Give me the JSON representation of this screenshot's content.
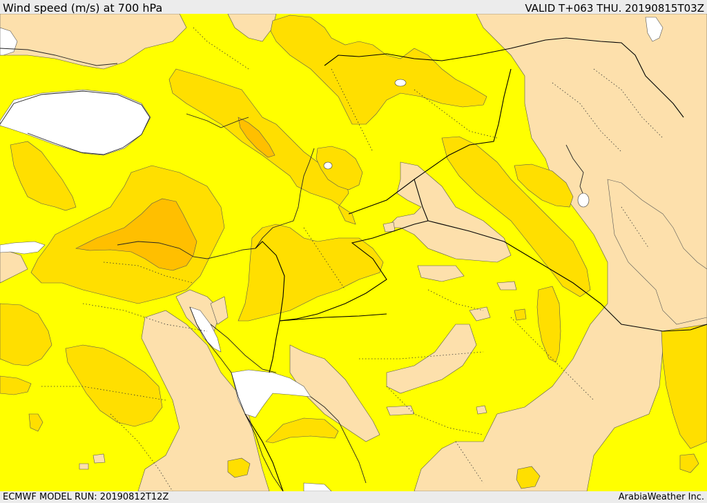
{
  "header": {
    "title": "Wind speed (m/s) at 700 hPa",
    "valid": "VALID T+063 THU. 20190815T03Z"
  },
  "footer": {
    "model_run": "ECMWF MODEL RUN: 20190812T12Z",
    "credit": "ArabiaWeather Inc."
  },
  "legend_colors": {
    "very_low": "#ffffff",
    "low": "#fde0ac",
    "moderate": "#ffff00",
    "elevated": "#ffdf00",
    "high": "#ffbf00",
    "very_high": "#ffa800"
  }
}
